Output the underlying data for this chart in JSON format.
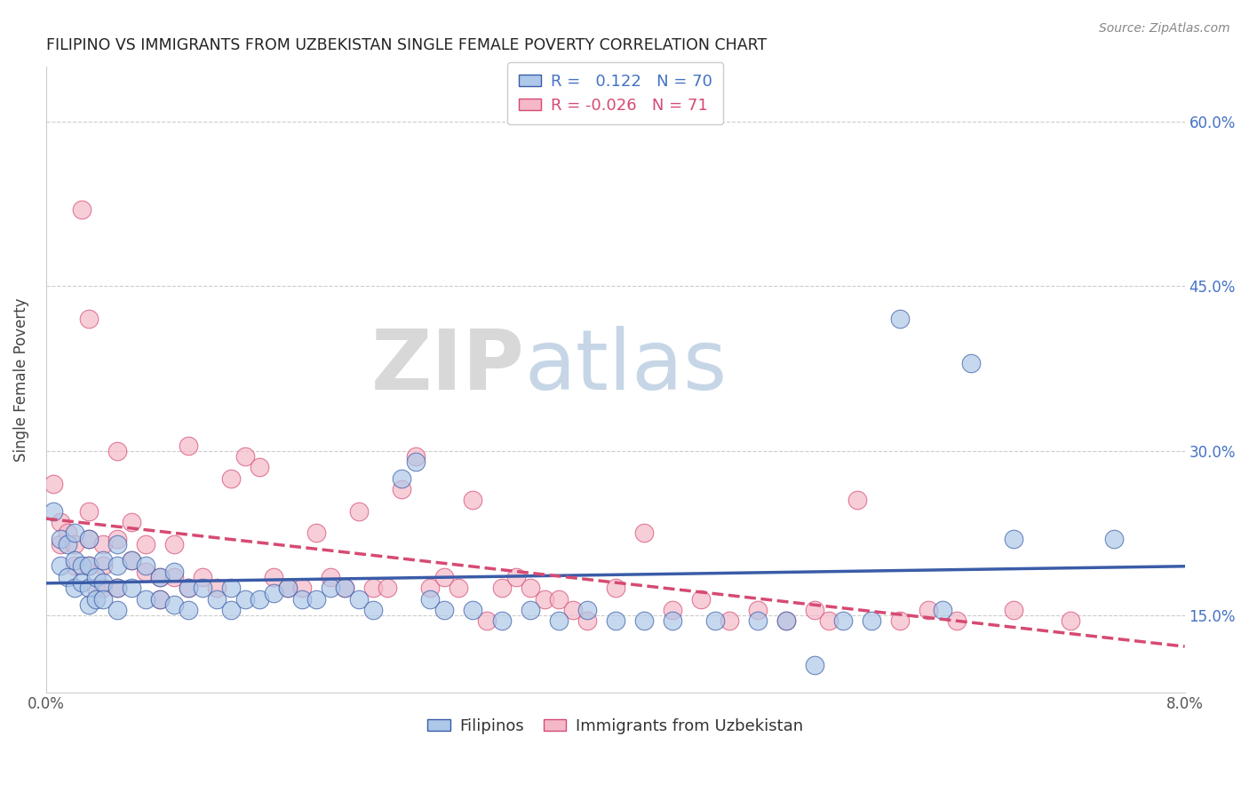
{
  "title": "FILIPINO VS IMMIGRANTS FROM UZBEKISTAN SINGLE FEMALE POVERTY CORRELATION CHART",
  "source": "Source: ZipAtlas.com",
  "ylabel": "Single Female Poverty",
  "yticks": [
    "15.0%",
    "30.0%",
    "45.0%",
    "60.0%"
  ],
  "ytick_vals": [
    0.15,
    0.3,
    0.45,
    0.6
  ],
  "xlim": [
    0.0,
    0.08
  ],
  "ylim": [
    0.08,
    0.65
  ],
  "legend_labels": [
    "Filipinos",
    "Immigrants from Uzbekistan"
  ],
  "R_filipino": 0.122,
  "N_filipino": 70,
  "R_uzbek": -0.026,
  "N_uzbek": 71,
  "color_filipino": "#adc8e8",
  "color_uzbek": "#f5b8c8",
  "line_color_filipino": "#3a5ca8",
  "line_color_uzbek": "#d64a72",
  "watermark_zip": "ZIP",
  "watermark_atlas": "atlas",
  "filipino_x": [
    0.0005,
    0.001,
    0.001,
    0.0015,
    0.0015,
    0.002,
    0.002,
    0.002,
    0.0025,
    0.0025,
    0.003,
    0.003,
    0.003,
    0.003,
    0.0035,
    0.0035,
    0.004,
    0.004,
    0.004,
    0.005,
    0.005,
    0.005,
    0.005,
    0.006,
    0.006,
    0.007,
    0.007,
    0.008,
    0.008,
    0.009,
    0.009,
    0.01,
    0.01,
    0.011,
    0.012,
    0.013,
    0.013,
    0.014,
    0.015,
    0.016,
    0.017,
    0.018,
    0.019,
    0.02,
    0.021,
    0.022,
    0.023,
    0.025,
    0.026,
    0.027,
    0.028,
    0.03,
    0.032,
    0.034,
    0.036,
    0.038,
    0.04,
    0.042,
    0.044,
    0.047,
    0.05,
    0.052,
    0.054,
    0.056,
    0.058,
    0.06,
    0.063,
    0.065,
    0.068,
    0.075
  ],
  "filipino_y": [
    0.245,
    0.22,
    0.195,
    0.215,
    0.185,
    0.225,
    0.2,
    0.175,
    0.195,
    0.18,
    0.22,
    0.195,
    0.175,
    0.16,
    0.185,
    0.165,
    0.2,
    0.18,
    0.165,
    0.215,
    0.195,
    0.175,
    0.155,
    0.2,
    0.175,
    0.195,
    0.165,
    0.185,
    0.165,
    0.19,
    0.16,
    0.175,
    0.155,
    0.175,
    0.165,
    0.175,
    0.155,
    0.165,
    0.165,
    0.17,
    0.175,
    0.165,
    0.165,
    0.175,
    0.175,
    0.165,
    0.155,
    0.275,
    0.29,
    0.165,
    0.155,
    0.155,
    0.145,
    0.155,
    0.145,
    0.155,
    0.145,
    0.145,
    0.145,
    0.145,
    0.145,
    0.145,
    0.105,
    0.145,
    0.145,
    0.42,
    0.155,
    0.38,
    0.22,
    0.22
  ],
  "uzbek_x": [
    0.0005,
    0.001,
    0.001,
    0.0015,
    0.002,
    0.002,
    0.0025,
    0.003,
    0.003,
    0.003,
    0.003,
    0.0035,
    0.004,
    0.004,
    0.004,
    0.005,
    0.005,
    0.005,
    0.006,
    0.006,
    0.007,
    0.007,
    0.008,
    0.008,
    0.009,
    0.009,
    0.01,
    0.01,
    0.011,
    0.012,
    0.013,
    0.014,
    0.015,
    0.016,
    0.017,
    0.018,
    0.019,
    0.02,
    0.021,
    0.022,
    0.023,
    0.024,
    0.025,
    0.026,
    0.027,
    0.028,
    0.029,
    0.03,
    0.031,
    0.032,
    0.033,
    0.034,
    0.035,
    0.036,
    0.037,
    0.038,
    0.04,
    0.042,
    0.044,
    0.046,
    0.048,
    0.05,
    0.052,
    0.054,
    0.055,
    0.057,
    0.06,
    0.062,
    0.064,
    0.068,
    0.072
  ],
  "uzbek_y": [
    0.27,
    0.235,
    0.215,
    0.225,
    0.215,
    0.195,
    0.52,
    0.245,
    0.42,
    0.22,
    0.195,
    0.175,
    0.215,
    0.195,
    0.175,
    0.3,
    0.22,
    0.175,
    0.235,
    0.2,
    0.215,
    0.19,
    0.185,
    0.165,
    0.215,
    0.185,
    0.305,
    0.175,
    0.185,
    0.175,
    0.275,
    0.295,
    0.285,
    0.185,
    0.175,
    0.175,
    0.225,
    0.185,
    0.175,
    0.245,
    0.175,
    0.175,
    0.265,
    0.295,
    0.175,
    0.185,
    0.175,
    0.255,
    0.145,
    0.175,
    0.185,
    0.175,
    0.165,
    0.165,
    0.155,
    0.145,
    0.175,
    0.225,
    0.155,
    0.165,
    0.145,
    0.155,
    0.145,
    0.155,
    0.145,
    0.255,
    0.145,
    0.155,
    0.145,
    0.155,
    0.145
  ]
}
